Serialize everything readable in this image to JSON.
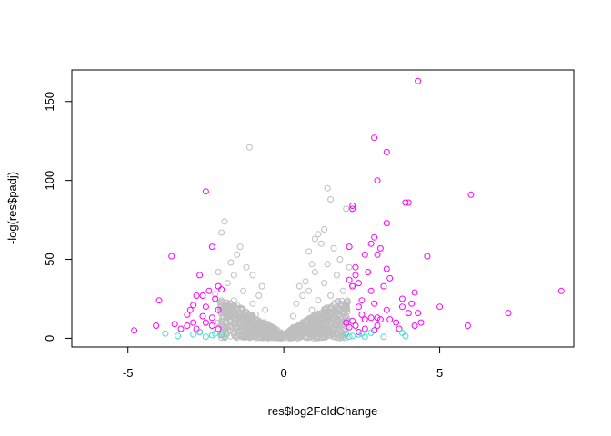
{
  "chart_data": {
    "type": "scatter",
    "xlabel": "res$log2FoldChange",
    "ylabel": "-log(res$padj)",
    "xlim": [
      -6.8,
      9.3
    ],
    "ylim": [
      -5.5,
      170
    ],
    "x_ticks": [
      "-5",
      "0",
      "5"
    ],
    "y_ticks": [
      "0",
      "50",
      "100",
      "150"
    ],
    "grid": false,
    "legend": "none",
    "colors": {
      "gray": "#bebebe",
      "magenta": "#ff00ff",
      "cyan": "#40e0d0"
    },
    "series": [
      {
        "color": "gray",
        "points": [
          [
            -1.1,
            121
          ],
          [
            -1.4,
            58
          ],
          [
            -1.5,
            53
          ],
          [
            -1.9,
            74
          ],
          [
            -2.0,
            67
          ],
          [
            -1.7,
            48
          ],
          [
            -1.2,
            45
          ],
          [
            -1.0,
            40
          ],
          [
            -1.6,
            40
          ],
          [
            -2.1,
            42
          ],
          [
            -0.7,
            33
          ],
          [
            -1.8,
            35
          ],
          [
            -1.3,
            30
          ],
          [
            -0.8,
            27
          ],
          [
            -2.2,
            28
          ],
          [
            -1.0,
            22
          ],
          [
            -1.6,
            24
          ],
          [
            -0.6,
            18
          ],
          [
            -0.9,
            15
          ],
          [
            -1.2,
            14
          ],
          [
            -1.5,
            12
          ],
          [
            -1.9,
            16
          ],
          [
            -2.1,
            10
          ],
          [
            -1.7,
            8
          ],
          [
            -0.5,
            8
          ],
          [
            -0.3,
            5
          ],
          [
            -1.4,
            5
          ],
          [
            1.4,
            95
          ],
          [
            1.5,
            88
          ],
          [
            2.0,
            82
          ],
          [
            1.3,
            69
          ],
          [
            1.1,
            66
          ],
          [
            1.2,
            60
          ],
          [
            1.0,
            63
          ],
          [
            1.6,
            57
          ],
          [
            0.8,
            55
          ],
          [
            1.8,
            50
          ],
          [
            0.9,
            47
          ],
          [
            1.4,
            47
          ],
          [
            2.1,
            45
          ],
          [
            1.0,
            42
          ],
          [
            1.7,
            40
          ],
          [
            0.7,
            36
          ],
          [
            0.5,
            33
          ],
          [
            1.3,
            35
          ],
          [
            2.2,
            34
          ],
          [
            0.8,
            30
          ],
          [
            1.9,
            30
          ],
          [
            0.6,
            27
          ],
          [
            1.5,
            27
          ],
          [
            1.1,
            24
          ],
          [
            0.4,
            22
          ],
          [
            1.6,
            21
          ],
          [
            0.9,
            18
          ],
          [
            1.2,
            16
          ],
          [
            0.3,
            14
          ],
          [
            2.0,
            14
          ],
          [
            0.7,
            11
          ],
          [
            1.5,
            9
          ],
          [
            0.3,
            7
          ],
          [
            1.8,
            6
          ],
          [
            0.2,
            4
          ]
        ]
      },
      {
        "color": "magenta",
        "points": [
          [
            4.3,
            163
          ],
          [
            2.9,
            127
          ],
          [
            3.3,
            118
          ],
          [
            3.0,
            100
          ],
          [
            6.0,
            91
          ],
          [
            -2.5,
            93
          ],
          [
            3.9,
            86
          ],
          [
            4.0,
            86
          ],
          [
            2.2,
            84
          ],
          [
            2.2,
            82
          ],
          [
            3.3,
            73
          ],
          [
            2.9,
            64
          ],
          [
            2.8,
            60
          ],
          [
            2.1,
            58
          ],
          [
            -2.3,
            58
          ],
          [
            3.1,
            57
          ],
          [
            2.6,
            53
          ],
          [
            3.0,
            53
          ],
          [
            4.6,
            52
          ],
          [
            -3.6,
            52
          ],
          [
            2.3,
            45
          ],
          [
            3.3,
            44
          ],
          [
            2.7,
            42
          ],
          [
            -2.7,
            40
          ],
          [
            2.3,
            40
          ],
          [
            3.4,
            38
          ],
          [
            2.1,
            37
          ],
          [
            2.4,
            35
          ],
          [
            2.2,
            33
          ],
          [
            -2.1,
            33
          ],
          [
            3.2,
            33
          ],
          [
            -2.4,
            30
          ],
          [
            -2.0,
            31
          ],
          [
            4.2,
            29
          ],
          [
            8.9,
            30
          ],
          [
            2.8,
            30
          ],
          [
            -2.8,
            27
          ],
          [
            -2.6,
            27
          ],
          [
            -4.0,
            24
          ],
          [
            3.8,
            25
          ],
          [
            -2.2,
            25
          ],
          [
            2.5,
            24
          ],
          [
            2.9,
            22
          ],
          [
            4.1,
            22
          ],
          [
            -2.9,
            21
          ],
          [
            -2.5,
            20
          ],
          [
            3.8,
            20
          ],
          [
            5.0,
            20
          ],
          [
            2.4,
            20
          ],
          [
            -3.0,
            18
          ],
          [
            3.3,
            18
          ],
          [
            -2.1,
            18
          ],
          [
            7.2,
            16
          ],
          [
            4.0,
            16
          ],
          [
            4.3,
            16
          ],
          [
            2.5,
            15
          ],
          [
            -3.1,
            15
          ],
          [
            -2.6,
            14
          ],
          [
            2.8,
            13
          ],
          [
            3.0,
            13
          ],
          [
            3.1,
            12
          ],
          [
            2.6,
            12
          ],
          [
            -2.3,
            13
          ],
          [
            3.4,
            12
          ],
          [
            2.2,
            11
          ],
          [
            -2.9,
            10
          ],
          [
            -2.5,
            10
          ],
          [
            4.4,
            10
          ],
          [
            2.0,
            10
          ],
          [
            -3.5,
            9
          ],
          [
            -3.1,
            8
          ],
          [
            2.3,
            8
          ],
          [
            -2.3,
            8
          ],
          [
            3.0,
            8
          ],
          [
            3.6,
            10
          ],
          [
            4.2,
            8
          ],
          [
            5.9,
            8
          ],
          [
            -4.1,
            8
          ],
          [
            -2.8,
            6
          ],
          [
            2.6,
            6
          ],
          [
            -4.8,
            5
          ],
          [
            -2.1,
            6
          ],
          [
            2.1,
            7
          ],
          [
            -3.3,
            6
          ],
          [
            2.9,
            5
          ],
          [
            3.7,
            6
          ],
          [
            -2.7,
            4
          ],
          [
            2.4,
            4
          ]
        ]
      },
      {
        "color": "cyan",
        "points": [
          [
            -3.8,
            3
          ],
          [
            -3.4,
            1.5
          ],
          [
            -2.9,
            2.5
          ],
          [
            -2.5,
            1
          ],
          [
            -2.2,
            3
          ],
          [
            -2.0,
            2
          ],
          [
            -2.7,
            4
          ],
          [
            -2.3,
            2
          ],
          [
            2.0,
            3
          ],
          [
            2.2,
            1.5
          ],
          [
            2.4,
            2.5
          ],
          [
            2.6,
            1
          ],
          [
            2.8,
            3.5
          ],
          [
            3.2,
            1
          ],
          [
            3.8,
            3.5
          ],
          [
            3.9,
            1.5
          ],
          [
            2.1,
            1
          ],
          [
            2.5,
            3
          ]
        ]
      }
    ]
  }
}
